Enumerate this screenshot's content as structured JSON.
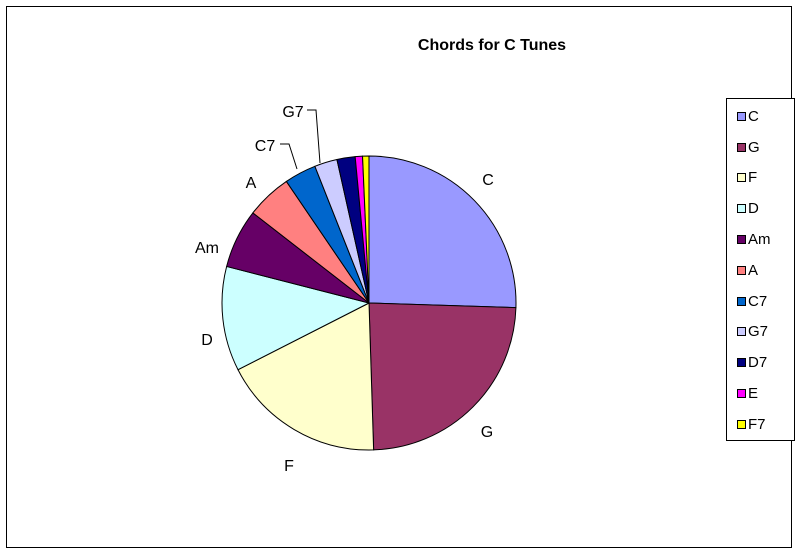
{
  "chart_data": {
    "type": "pie",
    "title": "Chords for C Tunes",
    "legend_position": "right",
    "categories": [
      "C",
      "G",
      "F",
      "D",
      "Am",
      "A",
      "C7",
      "G7",
      "D7",
      "E",
      "F7"
    ],
    "values": [
      25.5,
      24.0,
      18.0,
      11.5,
      6.5,
      5.0,
      3.5,
      2.5,
      2.0,
      0.8,
      0.7
    ],
    "colors": [
      "#9999FF",
      "#993366",
      "#FFFFCC",
      "#CCFFFF",
      "#660066",
      "#FF8080",
      "#0066CC",
      "#CCCCFF",
      "#000080",
      "#FF00FF",
      "#FFFF00"
    ],
    "slice_labels": [
      "C",
      "G",
      "F",
      "D",
      "Am",
      "A",
      "C7",
      "G7",
      "",
      "",
      ""
    ]
  }
}
